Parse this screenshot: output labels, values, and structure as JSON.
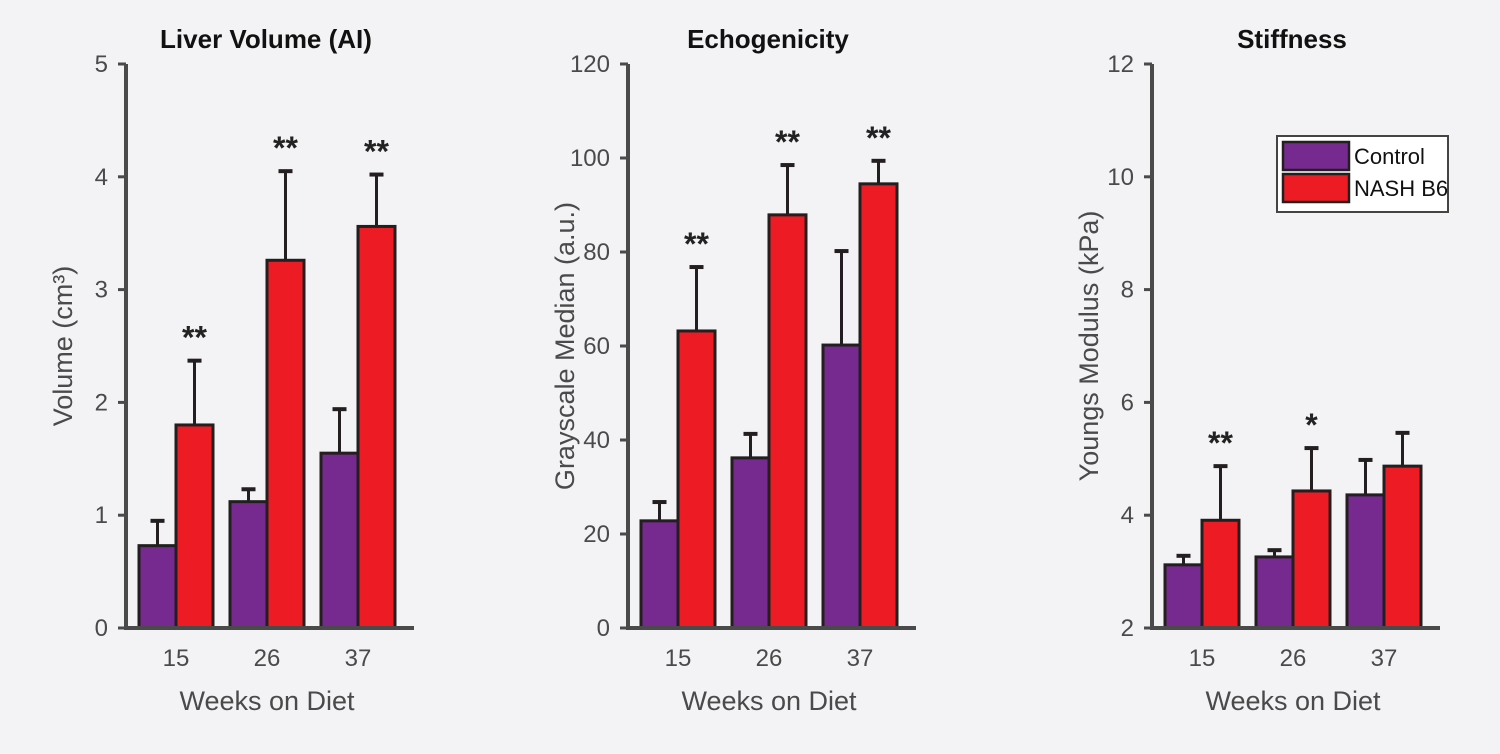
{
  "chart_data": [
    {
      "type": "bar",
      "title": "Liver Volume (AI)",
      "xlabel": "Weeks on Diet",
      "ylabel": "Volume (cm³)",
      "categories": [
        "15",
        "26",
        "37"
      ],
      "ylim": [
        0,
        5
      ],
      "yticks": [
        "0",
        "1",
        "2",
        "3",
        "4",
        "5"
      ],
      "series": [
        {
          "name": "Control",
          "values": [
            0.73,
            1.12,
            1.55
          ],
          "error": [
            0.22,
            0.11,
            0.39
          ]
        },
        {
          "name": "NASH B6",
          "values": [
            1.8,
            3.26,
            3.56
          ],
          "error": [
            0.57,
            0.79,
            0.46
          ]
        }
      ],
      "significance": [
        "**",
        "**",
        "**"
      ]
    },
    {
      "type": "bar",
      "title": "Echogenicity",
      "xlabel": "Weeks on Diet",
      "ylabel": "Grayscale Median (a.u.)",
      "categories": [
        "15",
        "26",
        "37"
      ],
      "ylim": [
        0,
        120
      ],
      "yticks": [
        "0",
        "20",
        "40",
        "60",
        "80",
        "100",
        "120"
      ],
      "series": [
        {
          "name": "Control",
          "values": [
            22.8,
            36.2,
            60.2
          ],
          "error": [
            4.0,
            5.1,
            20.0
          ]
        },
        {
          "name": "NASH B6",
          "values": [
            63.2,
            87.9,
            94.5
          ],
          "error": [
            13.6,
            10.6,
            4.9
          ]
        }
      ],
      "significance": [
        "**",
        "**",
        "**"
      ]
    },
    {
      "type": "bar",
      "title": "Stiffness",
      "xlabel": "Weeks on Diet",
      "ylabel": "Youngs Modulus (kPa)",
      "categories": [
        "15",
        "26",
        "37"
      ],
      "ylim": [
        2,
        12
      ],
      "yticks": [
        "2",
        "4",
        "6",
        "8",
        "10",
        "12"
      ],
      "series": [
        {
          "name": "Control",
          "values": [
            3.12,
            3.26,
            4.36
          ],
          "error": [
            0.16,
            0.12,
            0.62
          ]
        },
        {
          "name": "NASH B6",
          "values": [
            3.91,
            4.43,
            4.87
          ],
          "error": [
            0.96,
            0.76,
            0.59
          ]
        }
      ],
      "significance": [
        "**",
        "*",
        ""
      ],
      "legend": {
        "position": "top-right",
        "entries": [
          "Control",
          "NASH B6"
        ]
      }
    }
  ],
  "colors": {
    "control": "#762a90",
    "nash": "#ed1c24",
    "axis": "#4a4a4a",
    "background": "#f3f2f5"
  }
}
